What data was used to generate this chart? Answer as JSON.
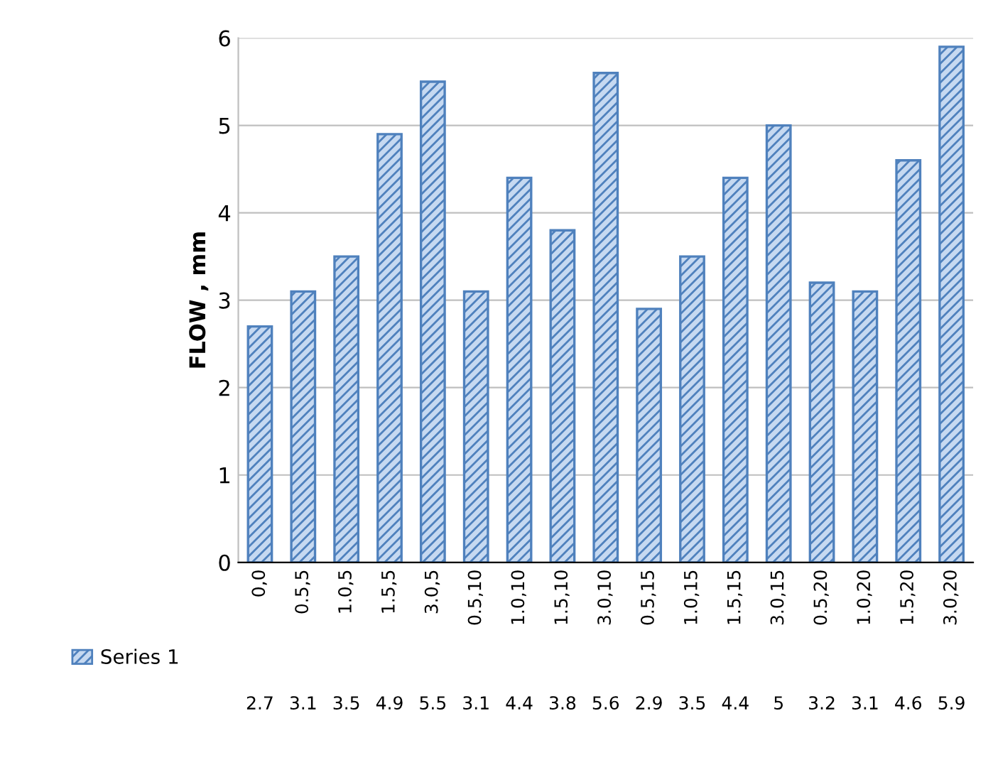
{
  "chart_data": {
    "type": "bar",
    "ylabel": "FLOW , mm",
    "categories": [
      "0,0",
      "0.5,5",
      "1.0,5",
      "1.5,5",
      "3.0,5",
      "0.5,10",
      "1.0,10",
      "1.5,10",
      "3.0,10",
      "0.5,15",
      "1.0,15",
      "1.5,15",
      "3.0,15",
      "0.5,20",
      "1.0,20",
      "1.5,20",
      "3.0,20"
    ],
    "series": [
      {
        "name": "Series 1",
        "color": "#4f81bd",
        "values": [
          2.7,
          3.1,
          3.5,
          4.9,
          5.5,
          3.1,
          4.4,
          3.8,
          5.6,
          2.9,
          3.5,
          4.4,
          5,
          3.2,
          3.1,
          4.6,
          5.9
        ]
      }
    ],
    "ylim": [
      0,
      6
    ],
    "yticks": [
      0,
      1,
      2,
      3,
      4,
      5,
      6
    ],
    "grid": "y",
    "legend": "bottom",
    "data_labels": true
  }
}
